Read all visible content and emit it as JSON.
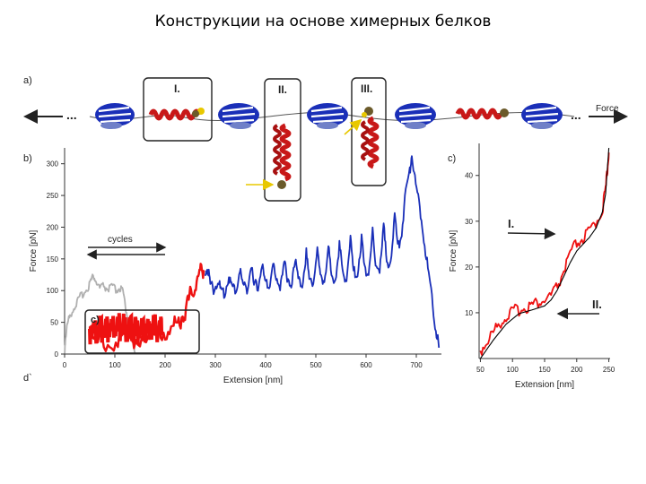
{
  "page": {
    "title": "Конструкции на основе химерных белков"
  },
  "figure": {
    "panel_a_label": "a)",
    "panel_b_label": "b)",
    "panel_c_label": "c)",
    "panel_d_label": "d`",
    "inset_label": "c)",
    "box_labels": [
      "I.",
      "II.",
      "III."
    ],
    "force_arrow_label": "Force",
    "ellipsis": "...",
    "cycles_label": "cycles",
    "c_arrow_labels": [
      "I.",
      "II."
    ]
  },
  "chart_data": [
    {
      "id": "panel-b",
      "type": "line",
      "xlabel": "Extension [nm]",
      "ylabel": "Force [pN]",
      "xlim": [
        0,
        750
      ],
      "ylim": [
        0,
        325
      ],
      "x_ticks": [
        0,
        100,
        200,
        300,
        400,
        500,
        600,
        700
      ],
      "y_ticks": [
        0,
        50,
        100,
        150,
        200,
        250,
        300
      ],
      "series": [
        {
          "color": "#b0b0b0",
          "points": [
            [
              0,
              0
            ],
            [
              2,
              25
            ],
            [
              6,
              45
            ],
            [
              12,
              60
            ],
            [
              20,
              72
            ],
            [
              28,
              82
            ],
            [
              36,
              92
            ],
            [
              45,
              100
            ],
            [
              52,
              112
            ],
            [
              58,
              120
            ],
            [
              64,
              108
            ],
            [
              70,
              100
            ],
            [
              78,
              104
            ],
            [
              86,
              98
            ],
            [
              94,
              103
            ],
            [
              102,
              97
            ],
            [
              110,
              100
            ],
            [
              116,
              94
            ],
            [
              122,
              68
            ],
            [
              128,
              42
            ],
            [
              134,
              18
            ],
            [
              140,
              2
            ]
          ]
        },
        {
          "color": "#ee1111",
          "points": [
            [
              50,
              5
            ],
            [
              70,
              10
            ],
            [
              90,
              12
            ],
            [
              110,
              14
            ],
            [
              130,
              16
            ],
            [
              150,
              20
            ],
            [
              170,
              24
            ],
            [
              185,
              26
            ],
            [
              200,
              28
            ],
            [
              215,
              32
            ],
            [
              225,
              40
            ],
            [
              235,
              52
            ],
            [
              243,
              66
            ],
            [
              250,
              82
            ],
            [
              258,
              98
            ],
            [
              266,
              112
            ],
            [
              272,
              122
            ],
            [
              278,
              132
            ]
          ]
        },
        {
          "color": "#1a2fb8",
          "points": [
            [
              280,
              128
            ],
            [
              285,
              130
            ],
            [
              290,
              104
            ],
            [
              298,
              98
            ],
            [
              305,
              112
            ],
            [
              311,
              94
            ],
            [
              319,
              90
            ],
            [
              327,
              120
            ],
            [
              333,
              98
            ],
            [
              341,
              96
            ],
            [
              349,
              128
            ],
            [
              355,
              102
            ],
            [
              363,
              100
            ],
            [
              371,
              133
            ],
            [
              377,
              103
            ],
            [
              385,
              101
            ],
            [
              393,
              138
            ],
            [
              399,
              104
            ],
            [
              407,
              102
            ],
            [
              415,
              141
            ],
            [
              421,
              107
            ],
            [
              429,
              104
            ],
            [
              437,
              146
            ],
            [
              443,
              108
            ],
            [
              451,
              106
            ],
            [
              459,
              150
            ],
            [
              465,
              110
            ],
            [
              473,
              108
            ],
            [
              481,
              155
            ],
            [
              487,
              112
            ],
            [
              495,
              110
            ],
            [
              503,
              160
            ],
            [
              509,
              114
            ],
            [
              517,
              112
            ],
            [
              525,
              163
            ],
            [
              531,
              117
            ],
            [
              539,
              115
            ],
            [
              547,
              168
            ],
            [
              553,
              120
            ],
            [
              561,
              118
            ],
            [
              569,
              174
            ],
            [
              575,
              124
            ],
            [
              583,
              122
            ],
            [
              591,
              178
            ],
            [
              597,
              128
            ],
            [
              605,
              126
            ],
            [
              613,
              185
            ],
            [
              619,
              132
            ],
            [
              627,
              130
            ],
            [
              635,
              198
            ],
            [
              641,
              138
            ],
            [
              649,
              142
            ],
            [
              657,
              214
            ],
            [
              663,
              160
            ],
            [
              671,
              190
            ],
            [
              679,
              252
            ],
            [
              687,
              284
            ],
            [
              691,
              312
            ],
            [
              699,
              262
            ],
            [
              707,
              226
            ],
            [
              715,
              180
            ],
            [
              723,
              130
            ],
            [
              731,
              82
            ],
            [
              739,
              35
            ],
            [
              745,
              10
            ]
          ]
        }
      ]
    },
    {
      "id": "panel-c",
      "type": "line",
      "xlabel": "Extension [nm]",
      "ylabel": "Force [pN]",
      "xlim": [
        48,
        252
      ],
      "ylim": [
        0,
        47
      ],
      "x_ticks": [
        50,
        100,
        150,
        200,
        250
      ],
      "y_ticks": [
        10,
        20,
        30,
        40
      ],
      "series": [
        {
          "color": "#ee1111",
          "points": [
            [
              50,
              1
            ],
            [
              60,
              3
            ],
            [
              70,
              5
            ],
            [
              80,
              7
            ],
            [
              90,
              8.5
            ],
            [
              100,
              9.5
            ],
            [
              110,
              10
            ],
            [
              120,
              10.5
            ],
            [
              130,
              11
            ],
            [
              140,
              11.5
            ],
            [
              150,
              12
            ],
            [
              160,
              13
            ],
            [
              170,
              15
            ],
            [
              180,
              18.5
            ],
            [
              190,
              22
            ],
            [
              200,
              24.5
            ],
            [
              210,
              25.5
            ],
            [
              220,
              27
            ],
            [
              230,
              29
            ],
            [
              240,
              32
            ],
            [
              245,
              36
            ],
            [
              248,
              41
            ],
            [
              250,
              45
            ]
          ]
        },
        {
          "color": "#000000",
          "points": [
            [
              50,
              0
            ],
            [
              70,
              4
            ],
            [
              90,
              7.5
            ],
            [
              110,
              9.8
            ],
            [
              130,
              10.6
            ],
            [
              150,
              11.5
            ],
            [
              160,
              12.8
            ],
            [
              170,
              15
            ],
            [
              180,
              18
            ],
            [
              190,
              21
            ],
            [
              200,
              23.5
            ],
            [
              210,
              25
            ],
            [
              220,
              26.5
            ],
            [
              230,
              28.5
            ],
            [
              240,
              32
            ],
            [
              245,
              36
            ],
            [
              250,
              46
            ]
          ]
        }
      ]
    }
  ]
}
